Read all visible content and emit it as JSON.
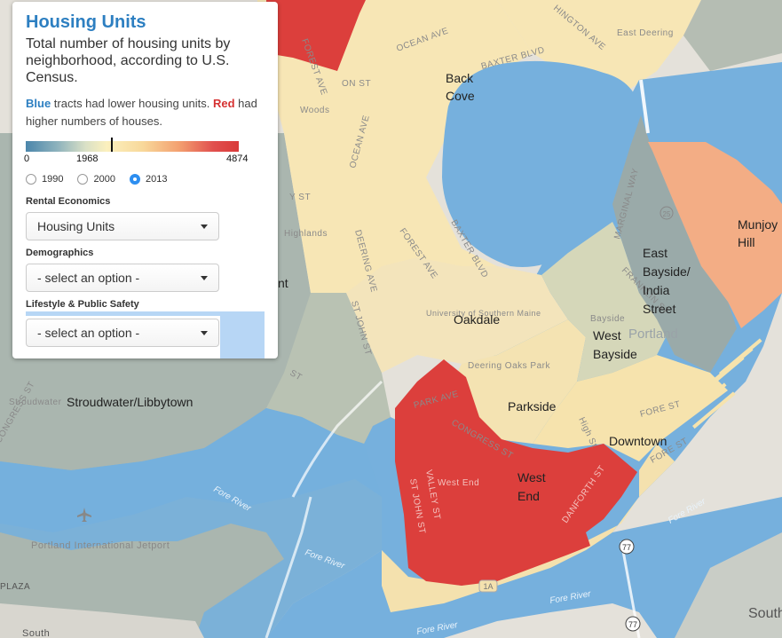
{
  "panel": {
    "title": "Housing Units",
    "subtitle": "Total number of housing units by neighborhood, according to U.S. Census.",
    "note_blue": "Blue",
    "note_mid": " tracts had lower housing units. ",
    "note_red": "Red",
    "note_end": " had higher numbers of houses.",
    "legend": {
      "min": "0",
      "mid": "1968",
      "max": "4874",
      "min_value": 0,
      "marker_value": 1968,
      "max_value": 4874
    },
    "years": [
      {
        "label": "1990",
        "selected": false
      },
      {
        "label": "2000",
        "selected": false
      },
      {
        "label": "2013",
        "selected": true
      }
    ],
    "sections": [
      {
        "label": "Rental Economics",
        "select_value": "Housing Units"
      },
      {
        "label": "Demographics",
        "select_value": "- select an option -"
      },
      {
        "label": "Lifestyle & Public Safety",
        "select_value": "- select an option -"
      }
    ]
  },
  "colors": {
    "low": "#4b86ab",
    "high": "#d93a3a",
    "grey_tract": "#a7b3ad",
    "cream_tract": "#f7e6b5",
    "water": "#76b0dd"
  },
  "neighborhoods": [
    {
      "name": [
        "Back",
        "Cove"
      ]
    },
    {
      "name": [
        "Munjoy",
        "Hill"
      ]
    },
    {
      "name": [
        "East",
        "Bayside/",
        "India",
        "Street"
      ]
    },
    {
      "name": [
        "Oakdale"
      ]
    },
    {
      "name": [
        "West",
        "Bayside"
      ]
    },
    {
      "name": [
        "Stroudwater/Libbytown"
      ]
    },
    {
      "name": [
        "Parkside"
      ]
    },
    {
      "name": [
        "Downtown"
      ]
    },
    {
      "name": [
        "West",
        "End"
      ]
    },
    {
      "name": [
        "nt"
      ]
    }
  ],
  "basemap_labels": [
    "OCEAN AVE",
    "BAXTER BLVD",
    "HINGTON AVE",
    "East Deering",
    "FOREST AVE",
    "OCEAN AVE",
    "DEERING AVE",
    "FOREST AVE",
    "BAXTER BLVD",
    "ST JOHN ST",
    "MARGINAL WAY",
    "FRANKLIN ST",
    "Bayside",
    "Portland",
    "PARK AVE",
    "CONGRESS ST",
    "Deering Oaks Park",
    "West End",
    "VALLEY ST",
    "ST JOHN ST",
    "DANFORTH ST",
    "FORE ST",
    "FORE ST",
    "High St",
    "Stroudwater",
    "CONGRESS ST",
    "Fore River",
    "Fore River",
    "Fore River",
    "Fore River",
    "Portland International Jetport",
    "South",
    "South",
    "PLAZA",
    "Fore River",
    "77",
    "77",
    "1A",
    "University of Southern Maine",
    "Highlands",
    "Woods",
    "ON ST",
    "Y ST",
    "ST",
    "25"
  ]
}
